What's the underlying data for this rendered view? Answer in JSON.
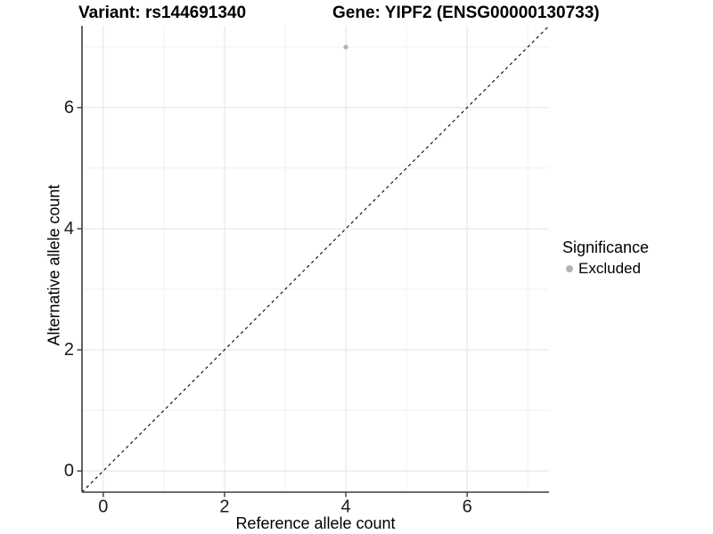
{
  "titles": {
    "variant": "Variant: rs144691340",
    "gene": "Gene: YIPF2 (ENSG00000130733)"
  },
  "chart_data": {
    "type": "scatter",
    "xlabel": "Reference allele count",
    "ylabel": "Alternative allele count",
    "xlim": [
      -0.35,
      7.35
    ],
    "ylim": [
      -0.35,
      7.35
    ],
    "x_ticks": [
      0,
      2,
      4,
      6
    ],
    "y_ticks": [
      0,
      2,
      4,
      6
    ],
    "x_minor_ticks": [
      1,
      3,
      5,
      7
    ],
    "y_minor_ticks": [
      1,
      3,
      5,
      7
    ],
    "grid": "major+minor",
    "identity_line": {
      "style": "dashed",
      "x1": -0.35,
      "y1": -0.35,
      "x2": 7.35,
      "y2": 7.35
    },
    "series": [
      {
        "name": "Excluded",
        "color": "#b3b3b3",
        "points": [
          {
            "x": 4,
            "y": 7
          }
        ]
      }
    ],
    "legend_position": "right"
  },
  "legend": {
    "title": "Significance",
    "items": [
      {
        "label": "Excluded",
        "color": "#b3b3b3",
        "marker": "dot"
      }
    ]
  },
  "colors": {
    "background": "#ffffff",
    "grid_major": "#e3e3e3",
    "grid_minor": "#f1f1f1",
    "axis": "#3d3d3d",
    "tick_text": "#1a1a1a",
    "title_text": "#000000",
    "identity_line": "#000000",
    "point": "#b3b3b3"
  }
}
